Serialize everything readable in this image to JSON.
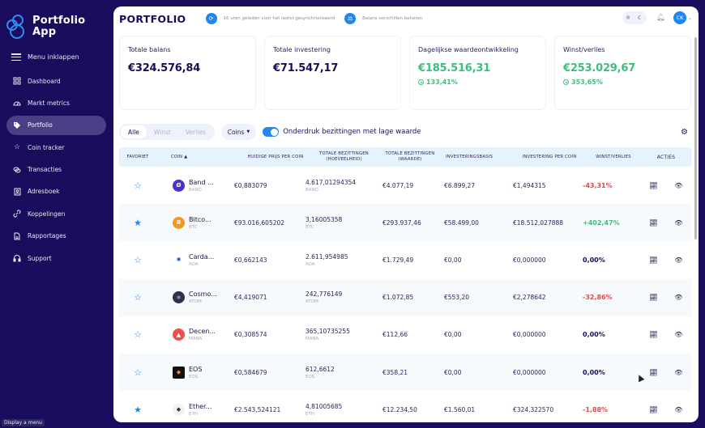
{
  "sidebar": {
    "app_name_line1": "Portfolio",
    "app_name_line2": "App",
    "collapse_label": "Menu inklappen",
    "items": [
      {
        "label": "Dashboard",
        "icon": "grid-icon",
        "active": false
      },
      {
        "label": "Markt metrics",
        "icon": "gauge-icon",
        "active": false
      },
      {
        "label": "Portfolio",
        "icon": "tag-icon",
        "active": true
      },
      {
        "label": "Coin tracker",
        "icon": "star-icon",
        "active": false
      },
      {
        "label": "Transacties",
        "icon": "coins-icon",
        "active": false
      },
      {
        "label": "Adresboek",
        "icon": "contact-book-icon",
        "active": false
      },
      {
        "label": "Koppelingen",
        "icon": "link-icon",
        "active": false
      },
      {
        "label": "Rapportages",
        "icon": "document-icon",
        "active": false
      },
      {
        "label": "Support",
        "icon": "headset-icon",
        "active": false
      }
    ],
    "tooltip": "Display a menu"
  },
  "header": {
    "title": "PORTFOLIO",
    "sync_text": "16 uren geleden voor het laatst gesynchroniseerd",
    "balance_text": "Balans verschillen beheren",
    "avatar_initials": "CK"
  },
  "cards": [
    {
      "label": "Totale balans",
      "value": "€324.576,84",
      "sub": null,
      "green": false
    },
    {
      "label": "Totale investering",
      "value": "€71.547,17",
      "sub": null,
      "green": false
    },
    {
      "label": "Dagelijkse waardeontwikkeling",
      "value": "€185.516,31",
      "sub": "133,41%",
      "green": true
    },
    {
      "label": "Winst/verlies",
      "value": "€253.029,67",
      "sub": "353,65%",
      "green": true
    }
  ],
  "filters": {
    "segments": [
      "Alle",
      "Winst",
      "Verlies"
    ],
    "active_segment": "Alle",
    "coins_dropdown": "Coins",
    "toggle_label": "Onderdruk bezittingen met lage waarde",
    "toggle_on": true
  },
  "table": {
    "headers": {
      "fav": "FAVORIET",
      "coin": "COIN ▲",
      "price": "HUIDIGE PRIJS PER COIN",
      "hold": "TOTALE BEZITTINGEN (HOEVEELHEID)",
      "val": "TOTALE BEZITTINGEN (WAARDE)",
      "basis": "INVESTERINGSBASIS",
      "inv": "INVESTERING PER COIN",
      "pl": "WINST/VERLIES",
      "act": "ACTIES"
    },
    "rows": [
      {
        "fav": false,
        "name": "Band ...",
        "symbol": "BAND",
        "logo_color": "#4a2fd6",
        "logo_glyph": "Ø",
        "price": "€0,883079",
        "hold": "4.617,01294354",
        "val": "€4.077,19",
        "basis": "€6.899,27",
        "inv": "€1,494315",
        "pl": "-43,31%",
        "pl_type": "neg"
      },
      {
        "fav": true,
        "name": "Bitco...",
        "symbol": "BTC",
        "logo_color": "#f29a1f",
        "logo_glyph": "B",
        "price": "€93.016,605202",
        "hold": "3,16005358",
        "val": "€293.937,46",
        "basis": "€58.499,00",
        "inv": "€18.512,027888",
        "pl": "+402,47%",
        "pl_type": "pos"
      },
      {
        "fav": false,
        "name": "Carda...",
        "symbol": "ADA",
        "logo_color": "#ffffff",
        "logo_glyph": "✺",
        "price": "€0,662143",
        "hold": "2.611,954985",
        "val": "€1.729,49",
        "basis": "€0,00",
        "inv": "€0,000000",
        "pl": "0,00%",
        "pl_type": "zero"
      },
      {
        "fav": false,
        "name": "Cosmo...",
        "symbol": "ATOM",
        "logo_color": "#2e3148",
        "logo_glyph": "⚛",
        "price": "€4,419071",
        "hold": "242,776149",
        "val": "€1.072,85",
        "basis": "€553,20",
        "inv": "€2,278642",
        "pl": "-32,86%",
        "pl_type": "neg"
      },
      {
        "fav": false,
        "name": "Decen...",
        "symbol": "MANA",
        "logo_color": "#f04e4e",
        "logo_glyph": "▲",
        "price": "€0,308574",
        "hold": "365,10735255",
        "val": "€112,66",
        "basis": "€0,00",
        "inv": "€0,000000",
        "pl": "0,00%",
        "pl_type": "zero"
      },
      {
        "fav": false,
        "name": "EOS",
        "symbol": "EOS",
        "logo_color": "#111111",
        "logo_glyph": "◆",
        "price": "€0,584679",
        "hold": "612,6612",
        "val": "€358,21",
        "basis": "€0,00",
        "inv": "€0,000000",
        "pl": "0,00%",
        "pl_type": "zero"
      },
      {
        "fav": true,
        "name": "Ether...",
        "symbol": "ETH",
        "logo_color": "#f2f2f2",
        "logo_glyph": "◆",
        "price": "€2.543,524121",
        "hold": "4,81005685",
        "val": "€12.234,50",
        "basis": "€1.560,01",
        "inv": "€324,322570",
        "pl": "-1,88%",
        "pl_type": "neg"
      }
    ]
  },
  "colors": {
    "sidebar_bg": "#1a0c5c",
    "accent_blue": "#1e88f0",
    "positive": "#3dbf7a",
    "negative": "#e04848",
    "header_row_bg": "#e6f2fd"
  }
}
